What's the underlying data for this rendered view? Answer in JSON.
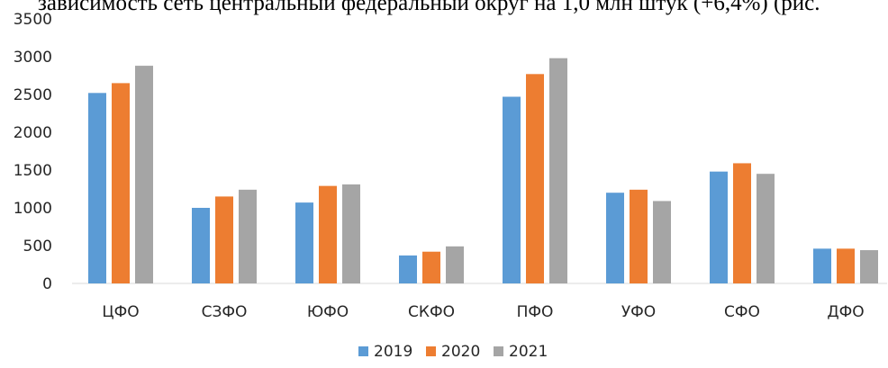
{
  "page": {
    "cropped_caption": "зависимость сеть центральный федеральный округ на 1,0 млн штук (+6,4%) (рис."
  },
  "chart_data": {
    "type": "bar",
    "title": "",
    "xlabel": "",
    "ylabel": "",
    "ylim": [
      0,
      3500
    ],
    "yticks": [
      0,
      500,
      1000,
      1500,
      2000,
      2500,
      3000,
      3500
    ],
    "grid": false,
    "legend_position": "bottom",
    "categories": [
      "ЦФО",
      "СЗФО",
      "ЮФО",
      "СКФО",
      "ПФО",
      "УФО",
      "СФО",
      "ДФО"
    ],
    "series": [
      {
        "name": "2019",
        "color": "#5B9BD5",
        "values": [
          2520,
          1000,
          1070,
          370,
          2470,
          1200,
          1480,
          460
        ]
      },
      {
        "name": "2020",
        "color": "#ED7D31",
        "values": [
          2650,
          1150,
          1290,
          420,
          2770,
          1240,
          1590,
          460
        ]
      },
      {
        "name": "2021",
        "color": "#A5A5A5",
        "values": [
          2880,
          1240,
          1310,
          490,
          2980,
          1090,
          1450,
          440
        ]
      }
    ]
  }
}
